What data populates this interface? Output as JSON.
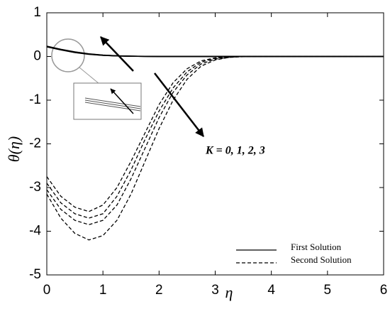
{
  "chart_data": {
    "type": "line",
    "x": [
      0,
      0.25,
      0.5,
      0.75,
      1,
      1.25,
      1.5,
      1.75,
      2,
      2.25,
      2.5,
      2.75,
      3,
      3.25,
      3.5,
      4,
      5,
      6
    ],
    "series": [
      {
        "name": "First Solution",
        "color": "#000000",
        "dashed": false,
        "curves": [
          [
            0.22,
            0.15,
            0.09,
            0.05,
            0.025,
            0.012,
            0.005,
            0.002,
            0,
            0,
            0,
            0,
            0,
            0,
            0,
            0,
            0,
            0
          ],
          [
            0.225,
            0.155,
            0.095,
            0.053,
            0.027,
            0.013,
            0.006,
            0.002,
            0,
            0,
            0,
            0,
            0,
            0,
            0,
            0,
            0,
            0
          ],
          [
            0.23,
            0.16,
            0.1,
            0.056,
            0.029,
            0.014,
            0.006,
            0.002,
            0,
            0,
            0,
            0,
            0,
            0,
            0,
            0,
            0,
            0
          ],
          [
            0.235,
            0.165,
            0.105,
            0.06,
            0.031,
            0.015,
            0.007,
            0.003,
            0,
            0,
            0,
            0,
            0,
            0,
            0,
            0,
            0,
            0
          ]
        ]
      },
      {
        "name": "Second Solution",
        "color": "#000000",
        "dashed": true,
        "curves": [
          [
            -2.75,
            -3.2,
            -3.45,
            -3.55,
            -3.4,
            -3.0,
            -2.4,
            -1.75,
            -1.1,
            -0.6,
            -0.28,
            -0.1,
            -0.03,
            -0.01,
            0,
            0,
            0,
            0
          ],
          [
            -2.9,
            -3.35,
            -3.6,
            -3.7,
            -3.6,
            -3.2,
            -2.6,
            -1.9,
            -1.25,
            -0.72,
            -0.35,
            -0.13,
            -0.04,
            -0.01,
            0,
            0,
            0,
            0
          ],
          [
            -3.05,
            -3.5,
            -3.75,
            -3.85,
            -3.75,
            -3.4,
            -2.8,
            -2.1,
            -1.4,
            -0.82,
            -0.42,
            -0.17,
            -0.06,
            -0.02,
            0,
            0,
            0,
            0
          ],
          [
            -3.15,
            -3.7,
            -4.05,
            -4.2,
            -4.1,
            -3.75,
            -3.15,
            -2.4,
            -1.65,
            -1.0,
            -0.52,
            -0.22,
            -0.08,
            -0.02,
            -0.005,
            0,
            0,
            0
          ]
        ]
      }
    ],
    "xlabel": "η",
    "ylabel": "θ(η)",
    "annotation": "K = 0, 1, 2, 3",
    "xlim": [
      0,
      6
    ],
    "ylim": [
      -5,
      1
    ],
    "xticks": [
      0,
      1,
      2,
      3,
      4,
      5,
      6
    ],
    "yticks": [
      -5,
      -4,
      -3,
      -2,
      -1,
      0,
      1
    ],
    "legend": "lower right"
  }
}
